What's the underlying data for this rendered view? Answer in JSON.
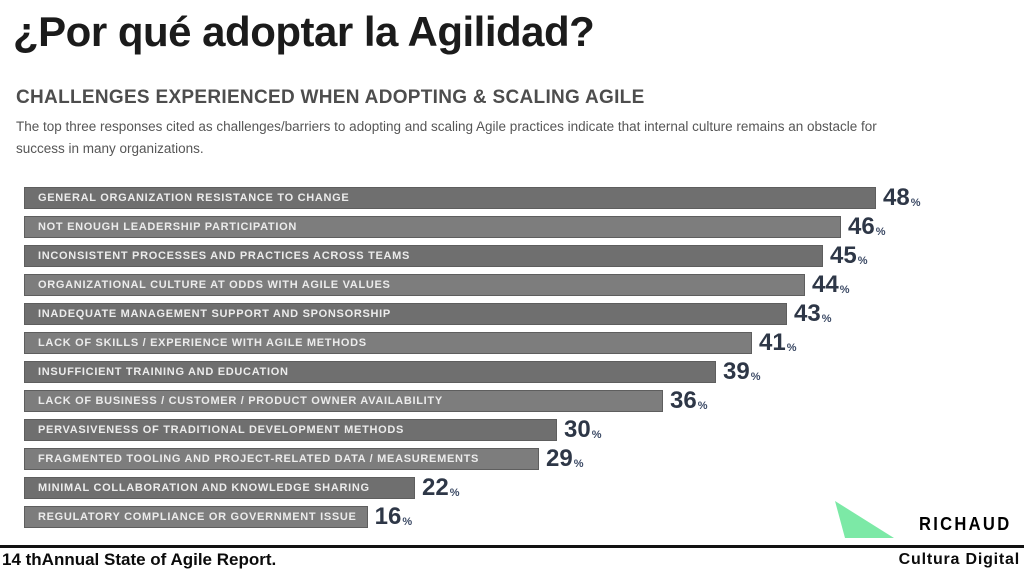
{
  "slide": {
    "title": "¿Por qué adoptar la Agilidad?"
  },
  "chart": {
    "title": "CHALLENGES EXPERIENCED WHEN ADOPTING & SCALING AGILE",
    "subtitle": "The top three responses cited as challenges/barriers to adopting and scaling Agile practices indicate that internal culture remains an obstacle for success in many organizations."
  },
  "chart_data": {
    "type": "bar",
    "orientation": "horizontal",
    "title": "CHALLENGES EXPERIENCED WHEN ADOPTING & SCALING AGILE",
    "categories": [
      "GENERAL ORGANIZATION RESISTANCE TO CHANGE",
      "NOT ENOUGH LEADERSHIP PARTICIPATION",
      "INCONSISTENT PROCESSES AND PRACTICES ACROSS TEAMS",
      "ORGANIZATIONAL CULTURE AT ODDS WITH AGILE VALUES",
      "INADEQUATE MANAGEMENT SUPPORT AND SPONSORSHIP",
      "LACK OF SKILLS / EXPERIENCE WITH AGILE METHODS",
      "INSUFFICIENT TRAINING AND EDUCATION",
      "LACK OF BUSINESS / CUSTOMER / PRODUCT OWNER AVAILABILITY",
      "PERVASIVENESS OF TRADITIONAL DEVELOPMENT METHODS",
      "FRAGMENTED TOOLING AND PROJECT-RELATED DATA / MEASUREMENTS",
      "MINIMAL COLLABORATION AND KNOWLEDGE SHARING",
      "REGULATORY COMPLIANCE OR GOVERNMENT ISSUE"
    ],
    "values": [
      48,
      46,
      45,
      44,
      43,
      41,
      39,
      36,
      30,
      29,
      22,
      16
    ],
    "unit": "%",
    "xlim": [
      0,
      48
    ],
    "grid": false,
    "legend": false,
    "value_labels": "end-of-bar",
    "bar_colors": [
      "#6f6f6f",
      "#7d7d7d"
    ],
    "value_label_color": "#2e3747"
  },
  "logo": {
    "brand": "RICHAUD",
    "triangle_color": "#7ce9a6"
  },
  "footer": {
    "left": "14 thAnnual State of Agile Report.",
    "right": "Cultura Digital"
  }
}
